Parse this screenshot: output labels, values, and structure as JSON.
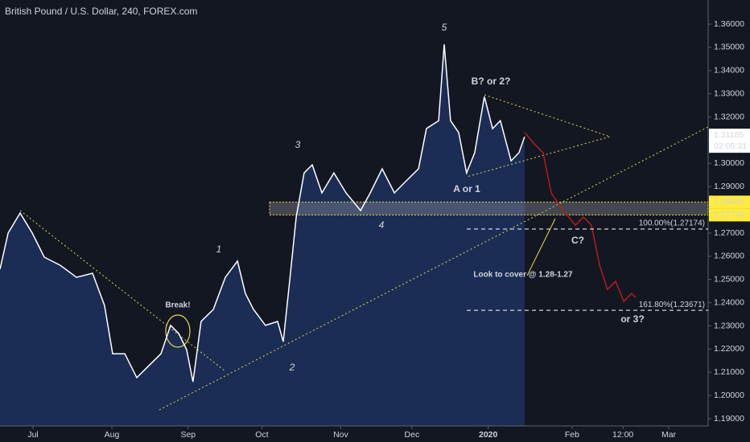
{
  "chart_data": {
    "type": "line",
    "title": "British Pound / U.S. Dollar, 240, FOREX.com",
    "x": [
      0,
      3.2,
      7.9,
      12.7,
      17.4,
      23.7,
      30.1,
      36.4,
      41.1,
      44.3,
      49.1,
      53.8,
      58.5,
      63.3,
      67.1,
      70.3,
      73.4,
      75.9,
      79.1,
      83.9,
      88.6,
      93.4,
      96.5,
      99.7,
      104.4,
      109.2,
      111.4,
      113.9,
      116.5,
      119.6,
      122.8,
      126.6,
      131.3,
      136.1,
      141.8,
      145.6,
      150.3,
      155.1,
      159.8,
      164.6,
      167.7,
      172.5,
      174.7,
      177.2,
      180.4,
      183.5,
      186.7,
      190.5,
      193.7,
      196.8,
      201,
      204.1,
      206.3
    ],
    "series": [
      {
        "color": "#ffffff",
        "fill": "#1b2d55",
        "values": [
          1.2544,
          1.27,
          1.2786,
          1.27,
          1.2596,
          1.2561,
          1.2509,
          1.2527,
          1.2388,
          1.218,
          1.218,
          1.2077,
          1.2128,
          1.218,
          1.2302,
          1.2267,
          1.2198,
          1.2059,
          1.2319,
          1.2371,
          1.2509,
          1.2579,
          1.244,
          1.2371,
          1.2302,
          1.2319,
          1.2232,
          1.2492,
          1.2769,
          1.2959,
          1.2994,
          1.2873,
          1.2959,
          1.2873,
          1.2797,
          1.2873,
          1.2977,
          1.2873,
          1.2925,
          1.2977,
          1.315,
          1.3184,
          1.3513,
          1.3184,
          1.3133,
          1.2959,
          1.3046,
          1.3288,
          1.315,
          1.3184,
          1.3011,
          1.3046,
          1.3115
        ]
      },
      {
        "color": "#b71c1c",
        "x": [
          206.3,
          210.4,
          213.6,
          216.8,
          219.9,
          223.1,
          226.3,
          229.4,
          232.6,
          235.8,
          238.9,
          242.1,
          245.3,
          248.4,
          250
        ],
        "values": [
          1.3133,
          1.3081,
          1.3046,
          1.2873,
          1.2821,
          1.2776,
          1.2734,
          1.2769,
          1.2734,
          1.2561,
          1.2457,
          1.2492,
          1.2405,
          1.244,
          1.2423
        ]
      }
    ],
    "xlim": [
      0,
      278.5
    ],
    "xticks": [
      {
        "value": 13,
        "label": "Jul"
      },
      {
        "value": 44,
        "label": "Aug"
      },
      {
        "value": 74,
        "label": "Sep"
      },
      {
        "value": 103,
        "label": "Oct"
      },
      {
        "value": 134,
        "label": "Nov"
      },
      {
        "value": 162,
        "label": "Dec"
      },
      {
        "value": 192,
        "label": "2020"
      },
      {
        "value": 225,
        "label": "Feb"
      },
      {
        "value": 245,
        "label": "12:00"
      },
      {
        "value": 263,
        "label": "Mar"
      }
    ],
    "ylim": [
      1.1869,
      1.3704
    ],
    "yticks": [
      {
        "value": 1.19,
        "label": "1.19000"
      },
      {
        "value": 1.2,
        "label": "1.20000"
      },
      {
        "value": 1.21,
        "label": "1.21000"
      },
      {
        "value": 1.22,
        "label": "1.22000"
      },
      {
        "value": 1.23,
        "label": "1.23000"
      },
      {
        "value": 1.24,
        "label": "1.24000"
      },
      {
        "value": 1.25,
        "label": "1.25000"
      },
      {
        "value": 1.26,
        "label": "1.26000"
      },
      {
        "value": 1.27,
        "label": "1.27000"
      },
      {
        "value": 1.28,
        "label": "1.28000"
      },
      {
        "value": 1.29,
        "label": "1.29000"
      },
      {
        "value": 1.3,
        "label": "1.30000"
      },
      {
        "value": 1.31,
        "label": "1.31000"
      },
      {
        "value": 1.32,
        "label": "1.32000"
      },
      {
        "value": 1.33,
        "label": "1.33000"
      },
      {
        "value": 1.34,
        "label": "1.34000"
      },
      {
        "value": 1.35,
        "label": "1.35000"
      },
      {
        "value": 1.36,
        "label": "1.36000"
      }
    ],
    "last_price": {
      "value": 1.31185,
      "label": "1.31185",
      "countdown": "02:05:31"
    },
    "zone": [
      {
        "value": 1.28335,
        "label": "1.28335"
      },
      {
        "value": 1.27779,
        "label": "1.27779"
      }
    ],
    "fib_levels": [
      {
        "value": 1.27174,
        "label": "100.00%(1.27174)"
      },
      {
        "value": 1.23671,
        "label": "161.80%(1.23671)"
      }
    ],
    "annotations": [
      "5",
      "3",
      "1",
      "2",
      "4",
      "B? or 2?",
      "A or 1",
      "C?",
      "or 3?",
      "Break!",
      "Look to cover @ 1.28-1.27"
    ]
  }
}
